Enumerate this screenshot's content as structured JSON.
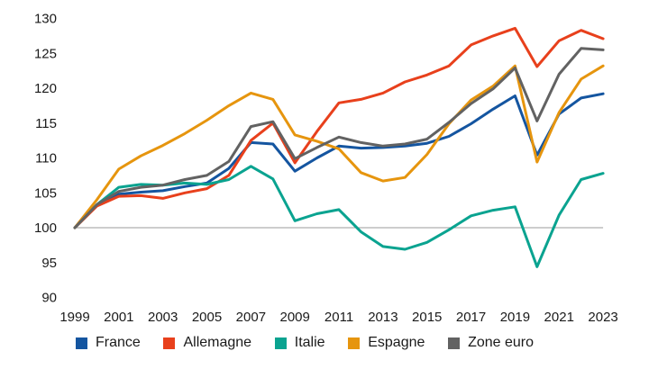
{
  "chart_data": {
    "type": "line",
    "title": "",
    "xlabel": "",
    "ylabel": "",
    "x": [
      1999,
      2000,
      2001,
      2002,
      2003,
      2004,
      2005,
      2006,
      2007,
      2008,
      2009,
      2010,
      2011,
      2012,
      2013,
      2014,
      2015,
      2016,
      2017,
      2018,
      2019,
      2020,
      2021,
      2022,
      2023
    ],
    "x_tick_labels": [
      "1999",
      "2001",
      "2003",
      "2005",
      "2007",
      "2009",
      "2011",
      "2013",
      "2015",
      "2017",
      "2019",
      "2021",
      "2023"
    ],
    "y_ticks": [
      90,
      95,
      100,
      105,
      110,
      115,
      120,
      125,
      130
    ],
    "ylim": [
      90,
      130
    ],
    "baseline_value": 100,
    "grid": "baseline-only",
    "legend_position": "bottom",
    "series": [
      {
        "name": "France",
        "color": "#1455a0",
        "values": [
          100,
          103.2,
          104.8,
          105.1,
          105.3,
          105.9,
          106.4,
          108.5,
          112.2,
          112.0,
          108.1,
          110.0,
          111.7,
          111.4,
          111.5,
          111.7,
          112.1,
          113.1,
          114.9,
          117.0,
          118.9,
          110.4,
          116.3,
          118.6,
          119.2
        ]
      },
      {
        "name": "Allemagne",
        "color": "#e8401c",
        "values": [
          100,
          103.1,
          104.5,
          104.6,
          104.2,
          105.0,
          105.6,
          107.5,
          112.5,
          115.0,
          109.3,
          113.8,
          117.9,
          118.4,
          119.3,
          120.9,
          121.9,
          123.2,
          126.2,
          127.5,
          128.6,
          123.1,
          126.8,
          128.3,
          127.1
        ]
      },
      {
        "name": "Italie",
        "color": "#0aa390",
        "values": [
          100,
          103.3,
          105.8,
          106.2,
          106.1,
          106.4,
          106.2,
          106.9,
          108.8,
          107.0,
          101.0,
          102.0,
          102.6,
          99.4,
          97.3,
          96.9,
          97.9,
          99.7,
          101.7,
          102.5,
          103.0,
          94.4,
          101.8,
          106.9,
          107.8
        ]
      },
      {
        "name": "Espagne",
        "color": "#e6950e",
        "values": [
          100,
          104.0,
          108.4,
          110.3,
          111.8,
          113.5,
          115.4,
          117.5,
          119.3,
          118.4,
          113.3,
          112.4,
          111.3,
          107.9,
          106.7,
          107.2,
          110.5,
          114.9,
          118.3,
          120.3,
          123.2,
          109.4,
          116.5,
          121.3,
          123.2
        ]
      },
      {
        "name": "Zone euro",
        "color": "#626262",
        "values": [
          100,
          103.3,
          105.2,
          105.8,
          106.1,
          106.9,
          107.5,
          109.5,
          114.5,
          115.2,
          109.9,
          111.5,
          113.0,
          112.2,
          111.7,
          112.0,
          112.7,
          115.1,
          117.8,
          119.9,
          122.9,
          115.3,
          122.0,
          125.7,
          125.5
        ]
      }
    ],
    "style": {
      "line_width": 3,
      "baseline_color": "#9b9b9b",
      "text_color": "#1a1a1a"
    }
  }
}
